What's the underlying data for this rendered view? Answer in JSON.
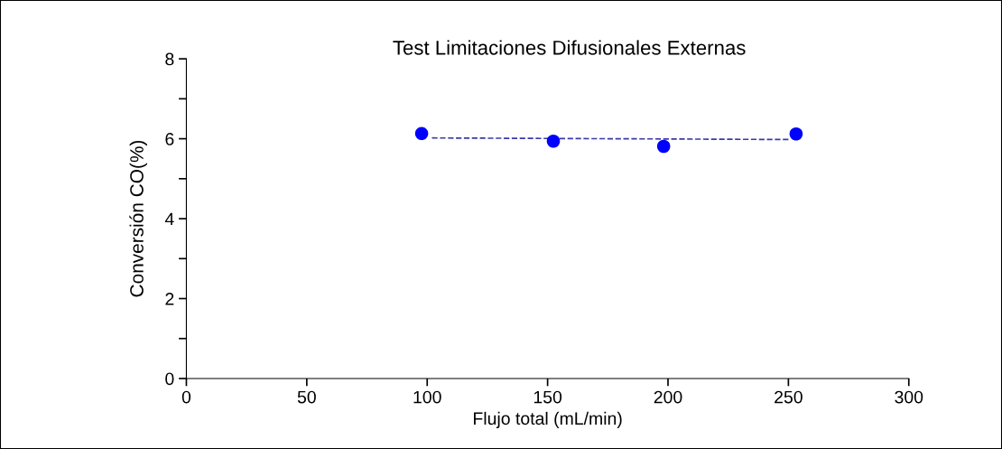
{
  "chart_data": {
    "type": "scatter",
    "title": "Test Limitaciones Difusionales Externas",
    "xlabel": "Flujo total (mL/min)",
    "ylabel": "Conversión CO(%)",
    "series": [
      {
        "color": "#0000ff",
        "marker": "circle",
        "x": [
          97.7,
          152.4,
          198.2,
          253.2
        ],
        "values": [
          6.13,
          5.94,
          5.81,
          6.12
        ]
      },
      {
        "type": "line",
        "color": "#3a3aa8",
        "line_style": "dashed",
        "marker": "none",
        "x": [
          102,
          251
        ],
        "values": [
          6.02,
          5.98
        ]
      }
    ],
    "xlim": [
      0,
      300
    ],
    "xticks": [
      0,
      50,
      100,
      150,
      200,
      250,
      300
    ],
    "ylim": [
      0,
      8
    ],
    "yticks": [
      0,
      {
        "value": 1,
        "label": null
      },
      2,
      {
        "value": 3,
        "label": null
      },
      4,
      {
        "value": 5,
        "label": null
      },
      6,
      {
        "value": 7,
        "label": null
      },
      8
    ],
    "grid": false,
    "legend": false
  }
}
